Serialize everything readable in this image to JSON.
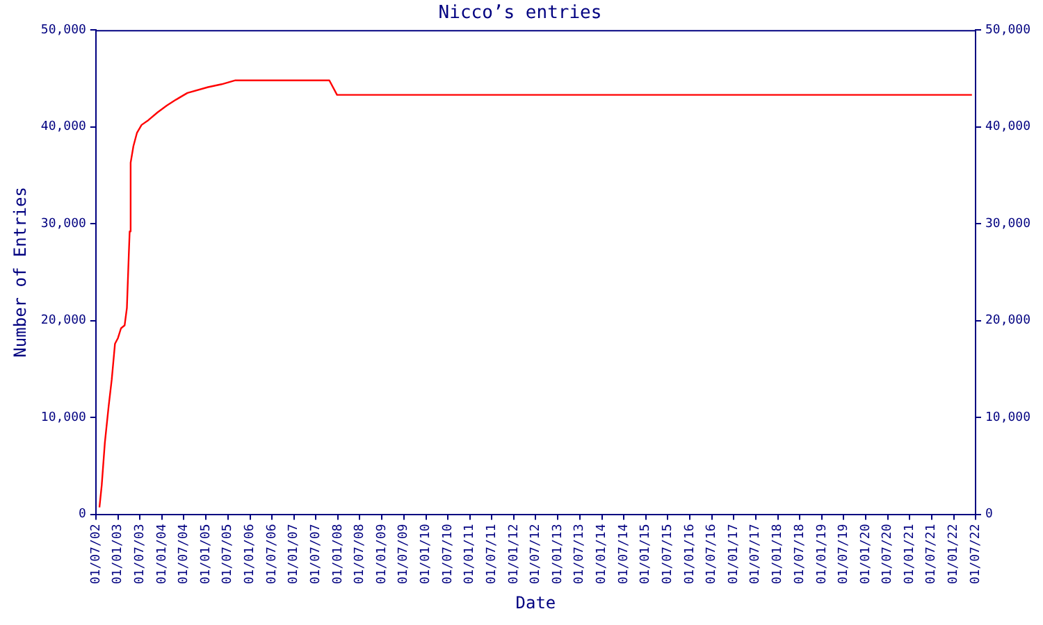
{
  "chart_data": {
    "type": "line",
    "title": "Nicco’s entries",
    "xlabel": "Date",
    "ylabel": "Number of Entries",
    "x": [
      "2002-07-31",
      "2002-08-19",
      "2002-09-14",
      "2002-10-15",
      "2002-11-10",
      "2002-12-07",
      "2003-01-01",
      "2003-01-26",
      "2003-02-25",
      "2003-03-16",
      "2003-04-01",
      "2003-04-08",
      "2003-04-16",
      "2003-05-09",
      "2003-06-08",
      "2003-07-16",
      "2003-09-11",
      "2003-11-26",
      "2004-02-10",
      "2004-04-26",
      "2004-07-30",
      "2005-01-17",
      "2005-05-11",
      "2005-09-02",
      "2007-10-22",
      "2007-12-25",
      "2022-06-01"
    ],
    "series": [
      {
        "color": "#ff0000",
        "values": [
          700,
          3000,
          7400,
          11100,
          13900,
          17600,
          18200,
          19200,
          19500,
          21300,
          26900,
          29200,
          36300,
          38000,
          39400,
          40200,
          40700,
          41500,
          42200,
          42800,
          43500,
          44100,
          44400,
          44800,
          44800,
          43300,
          43300
        ]
      }
    ],
    "xlim": [
      "2002-07-01",
      "2022-07-01"
    ],
    "xticks": [
      {
        "value": "2002-07-01",
        "label": "01/07/02"
      },
      {
        "value": "2003-01-01",
        "label": "01/01/03"
      },
      {
        "value": "2003-07-01",
        "label": "01/07/03"
      },
      {
        "value": "2004-01-01",
        "label": "01/01/04"
      },
      {
        "value": "2004-07-01",
        "label": "01/07/04"
      },
      {
        "value": "2005-01-01",
        "label": "01/01/05"
      },
      {
        "value": "2005-07-01",
        "label": "01/07/05"
      },
      {
        "value": "2006-01-01",
        "label": "01/01/06"
      },
      {
        "value": "2006-07-01",
        "label": "01/07/06"
      },
      {
        "value": "2007-01-01",
        "label": "01/01/07"
      },
      {
        "value": "2007-07-01",
        "label": "01/07/07"
      },
      {
        "value": "2008-01-01",
        "label": "01/01/08"
      },
      {
        "value": "2008-07-01",
        "label": "01/07/08"
      },
      {
        "value": "2009-01-01",
        "label": "01/01/09"
      },
      {
        "value": "2009-07-01",
        "label": "01/07/09"
      },
      {
        "value": "2010-01-01",
        "label": "01/01/10"
      },
      {
        "value": "2010-07-01",
        "label": "01/07/10"
      },
      {
        "value": "2011-01-01",
        "label": "01/01/11"
      },
      {
        "value": "2011-07-01",
        "label": "01/07/11"
      },
      {
        "value": "2012-01-01",
        "label": "01/01/12"
      },
      {
        "value": "2012-07-01",
        "label": "01/07/12"
      },
      {
        "value": "2013-01-01",
        "label": "01/01/13"
      },
      {
        "value": "2013-07-01",
        "label": "01/07/13"
      },
      {
        "value": "2014-01-01",
        "label": "01/01/14"
      },
      {
        "value": "2014-07-01",
        "label": "01/07/14"
      },
      {
        "value": "2015-01-01",
        "label": "01/01/15"
      },
      {
        "value": "2015-07-01",
        "label": "01/07/15"
      },
      {
        "value": "2016-01-01",
        "label": "01/01/16"
      },
      {
        "value": "2016-07-01",
        "label": "01/07/16"
      },
      {
        "value": "2017-01-01",
        "label": "01/01/17"
      },
      {
        "value": "2017-07-01",
        "label": "01/07/17"
      },
      {
        "value": "2018-01-01",
        "label": "01/01/18"
      },
      {
        "value": "2018-07-01",
        "label": "01/07/18"
      },
      {
        "value": "2019-01-01",
        "label": "01/01/19"
      },
      {
        "value": "2019-07-01",
        "label": "01/07/19"
      },
      {
        "value": "2020-01-01",
        "label": "01/01/20"
      },
      {
        "value": "2020-07-01",
        "label": "01/07/20"
      },
      {
        "value": "2021-01-01",
        "label": "01/01/21"
      },
      {
        "value": "2021-07-01",
        "label": "01/07/21"
      },
      {
        "value": "2022-01-01",
        "label": "01/01/22"
      },
      {
        "value": "2022-07-01",
        "label": "01/07/22"
      }
    ],
    "ylim": [
      0,
      50000
    ],
    "yticks": [
      0,
      {
        "value": 10000,
        "label": "10,000"
      },
      {
        "value": 20000,
        "label": "20,000"
      },
      {
        "value": 30000,
        "label": "30,000"
      },
      {
        "value": 40000,
        "label": "40,000"
      },
      {
        "value": 50000,
        "label": "50,000"
      }
    ],
    "y2lim": [
      0,
      50000
    ],
    "y2ticks": [
      0,
      {
        "value": 10000,
        "label": "10,000"
      },
      {
        "value": 20000,
        "label": "20,000"
      },
      {
        "value": 30000,
        "label": "30,000"
      },
      {
        "value": 40000,
        "label": "40,000"
      },
      {
        "value": 50000,
        "label": "50,000"
      }
    ],
    "grid": false,
    "legend": false,
    "marker": "none",
    "line_style": "solid"
  }
}
